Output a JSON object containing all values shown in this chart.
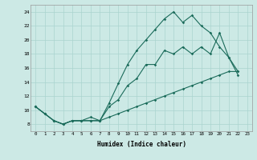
{
  "xlabel": "Humidex (Indice chaleur)",
  "bg_color": "#cce9e5",
  "grid_color": "#aad4cf",
  "line_color": "#1a6b5a",
  "xlim": [
    -0.5,
    23.5
  ],
  "ylim": [
    7.0,
    25.0
  ],
  "yticks": [
    8,
    10,
    12,
    14,
    16,
    18,
    20,
    22,
    24
  ],
  "x": [
    0,
    1,
    2,
    3,
    4,
    5,
    6,
    7,
    8,
    9,
    10,
    11,
    12,
    13,
    14,
    15,
    16,
    17,
    18,
    19,
    20,
    21,
    22
  ],
  "y_max": [
    10.5,
    9.5,
    8.5,
    8.0,
    8.5,
    8.5,
    8.5,
    8.5,
    11.0,
    13.8,
    16.5,
    18.5,
    20.0,
    21.5,
    23.0,
    24.0,
    22.5,
    23.5,
    22.0,
    21.0,
    19.0,
    17.5,
    15.0
  ],
  "y_min": [
    10.5,
    9.5,
    8.5,
    8.0,
    8.5,
    8.5,
    9.0,
    8.5,
    9.0,
    9.5,
    10.0,
    10.5,
    11.0,
    11.5,
    12.0,
    12.5,
    13.0,
    13.5,
    14.0,
    14.5,
    15.0,
    15.5,
    15.5
  ],
  "y_mean": [
    10.5,
    9.5,
    8.5,
    8.0,
    8.5,
    8.5,
    8.5,
    8.5,
    10.5,
    11.5,
    13.5,
    14.5,
    16.5,
    16.5,
    18.5,
    18.0,
    19.0,
    18.0,
    19.0,
    18.0,
    21.0,
    17.5,
    15.5
  ]
}
